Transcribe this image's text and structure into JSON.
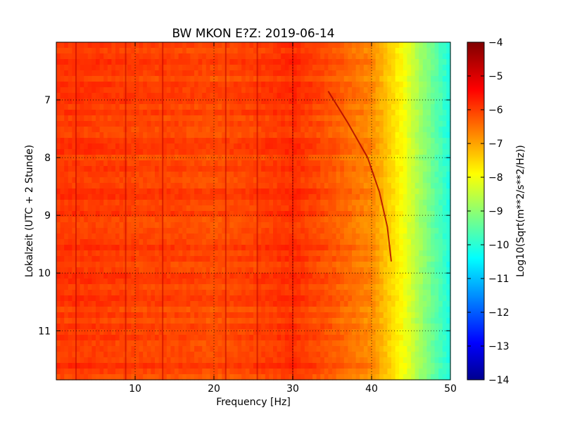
{
  "chart_data": {
    "type": "heatmap",
    "title": "BW MKON E?Z: 2019-06-14",
    "xlabel": "Frequency [Hz]",
    "ylabel": "Lokalzeit (UTC + 2 Stunde)",
    "colorbar_label": "Log10(Sqrt(m**2/s**2/Hz))",
    "xlim": [
      0,
      50
    ],
    "ylim": [
      11.85,
      6.0
    ],
    "xticks": [
      "10",
      "20",
      "30",
      "40",
      "50"
    ],
    "xtick_values": [
      10,
      20,
      30,
      40,
      50
    ],
    "yticks": [
      "7",
      "8",
      "9",
      "10",
      "11"
    ],
    "ytick_values": [
      7,
      8,
      9,
      10,
      11
    ],
    "colorbar_range": [
      -14,
      -4
    ],
    "colorbar_ticks": [
      "−4",
      "−5",
      "−6",
      "−7",
      "−8",
      "−9",
      "−10",
      "−11",
      "−12",
      "−13",
      "−14"
    ],
    "colorbar_tick_values": [
      -4,
      -5,
      -6,
      -7,
      -8,
      -9,
      -10,
      -11,
      -12,
      -13,
      -14
    ],
    "colormap": "jet",
    "grid": true,
    "frequency_profile": {
      "freq": [
        0,
        5,
        10,
        15,
        20,
        25,
        30,
        35,
        40,
        42,
        44,
        46,
        48,
        50
      ],
      "level": [
        -5.8,
        -5.8,
        -5.9,
        -5.9,
        -6.0,
        -5.9,
        -5.7,
        -6.1,
        -6.6,
        -7.2,
        -7.8,
        -8.6,
        -9.3,
        -10.0
      ]
    },
    "vertical_lines_hz": [
      2.5,
      8.8,
      13.5,
      21.5,
      25.5,
      30.0
    ],
    "drifting_line": {
      "time": [
        6.85,
        7.4,
        8.0,
        8.6,
        9.2,
        9.8
      ],
      "freq": [
        34.5,
        37.0,
        39.5,
        41.0,
        42.0,
        42.5
      ]
    }
  }
}
